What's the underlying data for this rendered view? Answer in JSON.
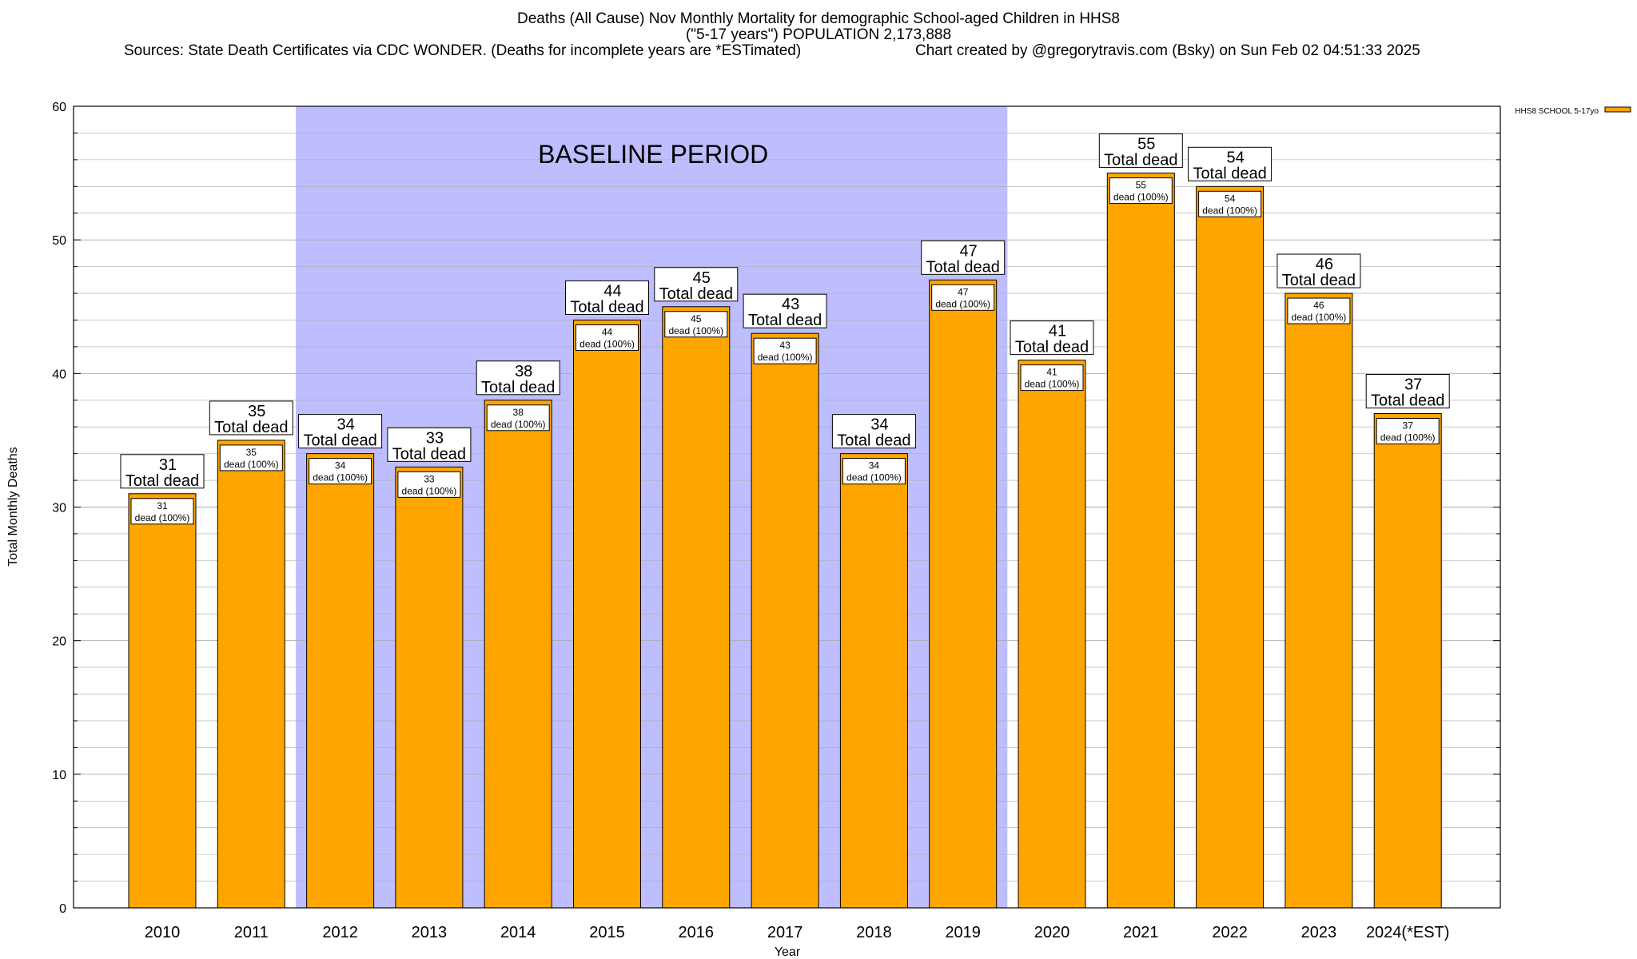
{
  "header": {
    "title_line1": "Deaths (All Cause) Nov Monthly Mortality for demographic School-aged Children in HHS8",
    "title_line2": "(\"5-17 years\") POPULATION 2,173,888",
    "sources": "Sources: State Death Certificates via CDC WONDER. (Deaths for incomplete years are *ESTimated)",
    "credit": "Chart created by @gregorytravis.com (Bsky) on Sun Feb 02 04:51:33 2025"
  },
  "colors": {
    "bar_fill": "#FFA500",
    "baseline_band": "#BEBEFF",
    "grid": "#aaaaaa",
    "background": "#ffffff"
  },
  "chart_data": {
    "type": "bar",
    "xlabel": "Year",
    "ylabel": "Total Monthly Deaths",
    "ylim": [
      0,
      60
    ],
    "yticks": [
      0,
      10,
      20,
      30,
      40,
      50,
      60
    ],
    "grid": true,
    "legend_position": "top-right",
    "categories": [
      "2010",
      "2011",
      "2012",
      "2013",
      "2014",
      "2015",
      "2016",
      "2017",
      "2018",
      "2019",
      "2020",
      "2021",
      "2022",
      "2023",
      "2024(*EST)"
    ],
    "series": [
      {
        "name": "HHS8 SCHOOL 5-17yo",
        "values": [
          31,
          35,
          34,
          33,
          38,
          44,
          45,
          43,
          34,
          47,
          41,
          55,
          54,
          46,
          37
        ]
      }
    ],
    "total_label_suffix": "Total dead",
    "inner_label_suffix": "dead (100%)",
    "baseline_period": {
      "label": "BASELINE PERIOD",
      "from": "2012",
      "to": "2019"
    }
  }
}
